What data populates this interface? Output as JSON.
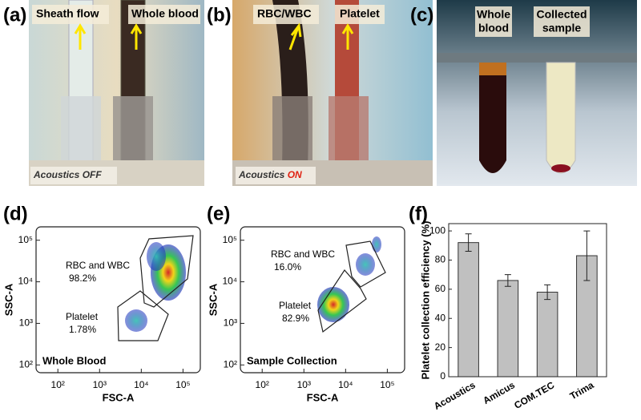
{
  "panels": {
    "a": {
      "label": "(a)",
      "tags": [
        "Sheath flow",
        "Whole blood"
      ],
      "caption": {
        "prefix": "Acoustics",
        "state": "OFF"
      }
    },
    "b": {
      "label": "(b)",
      "tags": [
        "RBC/WBC",
        "Platelet"
      ],
      "caption": {
        "prefix": "Acoustics",
        "state": "ON"
      }
    },
    "c": {
      "label": "(c)",
      "tags": [
        [
          "Whole",
          "blood"
        ],
        [
          "Collected",
          "sample"
        ]
      ]
    }
  },
  "flow_plots": [
    {
      "label": "(d)",
      "title": "Whole Blood",
      "xlabel": "FSC-A",
      "ylabel": "SSC-A",
      "gates": [
        {
          "name": "RBC and WBC",
          "percent": "98.2%"
        },
        {
          "name": "Platelet",
          "percent": "1.78%"
        }
      ],
      "log_scale": true,
      "xlim": [
        30,
        260000
      ],
      "ylim": [
        65,
        210000
      ],
      "xticks": [
        {
          "value": 100,
          "label": "10²"
        },
        {
          "value": 1000,
          "label": "10³"
        },
        {
          "value": 10000,
          "label": "10⁴"
        },
        {
          "value": 100000,
          "label": "10⁵"
        }
      ],
      "yticks": [
        {
          "value": 100,
          "label": "10²"
        },
        {
          "value": 1000,
          "label": "10³"
        },
        {
          "value": 10000,
          "label": "10⁴"
        },
        {
          "value": 100000,
          "label": "10⁵"
        }
      ]
    },
    {
      "label": "(e)",
      "title": "Sample Collection",
      "xlabel": "FSC-A",
      "ylabel": "SSC-A",
      "gates": [
        {
          "name": "RBC and WBC",
          "percent": "16.0%"
        },
        {
          "name": "Platelet",
          "percent": "82.9%"
        }
      ],
      "log_scale": true,
      "xlim": [
        30,
        260000
      ],
      "ylim": [
        65,
        210000
      ],
      "xticks": [
        {
          "value": 100,
          "label": "10²"
        },
        {
          "value": 1000,
          "label": "10³"
        },
        {
          "value": 10000,
          "label": "10⁴"
        },
        {
          "value": 100000,
          "label": "10⁵"
        }
      ],
      "yticks": [
        {
          "value": 100,
          "label": "10²"
        },
        {
          "value": 1000,
          "label": "10³"
        },
        {
          "value": 10000,
          "label": "10⁴"
        },
        {
          "value": 100000,
          "label": "10⁵"
        }
      ]
    }
  ],
  "chart_data": {
    "type": "bar",
    "label": "(f)",
    "ylabel": "Platelet collection efficiency (%)",
    "categories": [
      "Acoustics",
      "Amicus",
      "COM.TEC",
      "Trima"
    ],
    "values": [
      92,
      66,
      58,
      83
    ],
    "errors": [
      6,
      4,
      5,
      17
    ],
    "color": "#c0c0c0",
    "ylim": [
      0,
      105
    ],
    "yticks": [
      0,
      20,
      40,
      60,
      80,
      100
    ]
  }
}
